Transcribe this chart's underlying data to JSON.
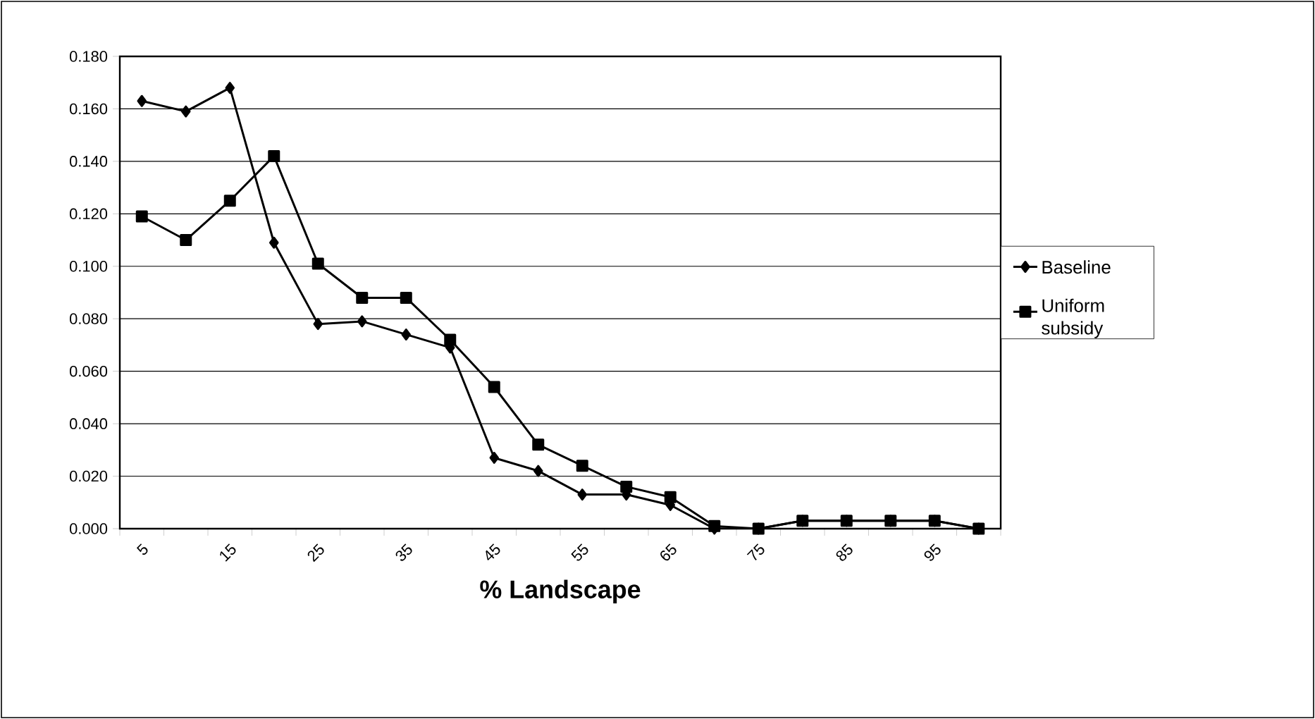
{
  "chart_data": {
    "type": "line",
    "xlabel": "% Landscape",
    "categories": [
      "5",
      null,
      "15",
      null,
      "25",
      null,
      "35",
      null,
      "45",
      null,
      "55",
      null,
      "65",
      null,
      "75",
      null,
      "85",
      null,
      "95",
      null
    ],
    "series": [
      {
        "name": "Baseline",
        "color": "#000000",
        "marker": "diamond",
        "values": [
          0.163,
          0.159,
          0.168,
          0.109,
          0.078,
          0.079,
          0.074,
          0.069,
          0.027,
          0.022,
          0.013,
          0.013,
          0.009,
          0.0,
          0.0,
          0.003,
          0.003,
          0.003,
          0.003,
          0.0
        ]
      },
      {
        "name": "Uniform subsidy",
        "color": "#000000",
        "marker": "square",
        "values": [
          0.119,
          0.11,
          0.125,
          0.142,
          0.101,
          0.088,
          0.088,
          0.072,
          0.054,
          0.032,
          0.024,
          0.016,
          0.012,
          0.001,
          0.0,
          0.003,
          0.003,
          0.003,
          0.003,
          0.0
        ]
      }
    ],
    "ylim": [
      0,
      0.18
    ],
    "yticks": [
      {
        "value": 0,
        "label": "0.000"
      },
      {
        "value": 0.02,
        "label": "0.020"
      },
      {
        "value": 0.04,
        "label": "0.040"
      },
      {
        "value": 0.06,
        "label": "0.060"
      },
      {
        "value": 0.08,
        "label": "0.080"
      },
      {
        "value": 0.1,
        "label": "0.100"
      },
      {
        "value": 0.12,
        "label": "0.120"
      },
      {
        "value": 0.14,
        "label": "0.140"
      },
      {
        "value": 0.16,
        "label": "0.160"
      },
      {
        "value": 0.18,
        "label": "0.180"
      }
    ],
    "grid": "y",
    "legend": "right",
    "line_style": "solid"
  }
}
